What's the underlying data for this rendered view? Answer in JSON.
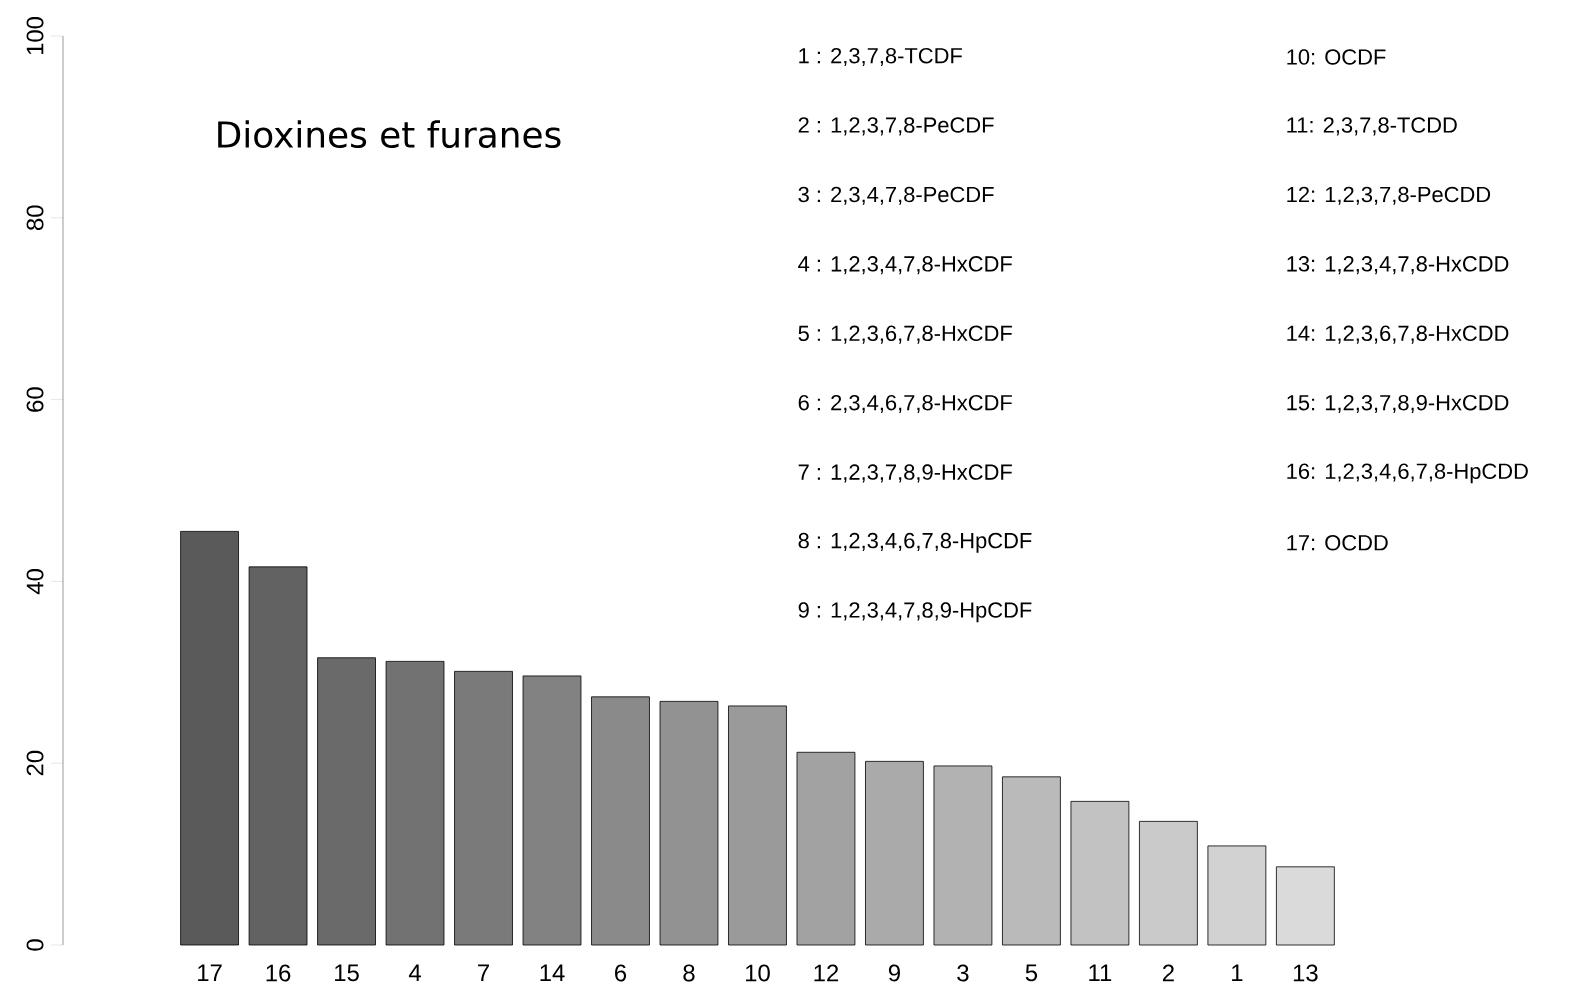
{
  "chart_data": {
    "type": "bar",
    "title": "Dioxines et furanes",
    "categories": [
      "17",
      "16",
      "15",
      "4",
      "7",
      "14",
      "6",
      "8",
      "10",
      "12",
      "9",
      "3",
      "5",
      "11",
      "2",
      "1",
      "13"
    ],
    "values": [
      45.5,
      41.6,
      31.6,
      31.2,
      30.1,
      29.6,
      27.3,
      26.8,
      26.3,
      21.2,
      20.2,
      19.7,
      18.5,
      15.8,
      13.6,
      10.9,
      8.6
    ],
    "colors": [
      "#5a5a5a",
      "#626262",
      "#6a6a6a",
      "#727272",
      "#7a7a7a",
      "#828282",
      "#8a8a8a",
      "#929292",
      "#9a9a9a",
      "#a2a2a2",
      "#aaaaaa",
      "#b2b2b2",
      "#bababa",
      "#c2c2c2",
      "#cacaca",
      "#d2d2d2",
      "#dadada"
    ],
    "ylim": [
      0,
      100
    ],
    "yticks": [
      0,
      20,
      40,
      60,
      80,
      100
    ],
    "annotations": [
      "1 : 2,3,7,8-TCDF",
      "2 : 1,2,3,7,8-PeCDF",
      "3 : 2,3,4,7,8-PeCDF",
      "4 : 1,2,3,4,7,8-HxCDF",
      "5 : 1,2,3,6,7,8-HxCDF",
      "6 : 2,3,4,6,7,8-HxCDF",
      "7 : 1,2,3,7,8,9-HxCDF",
      "8 : 1,2,3,4,6,7,8-HpCDF",
      "9 : 1,2,3,4,7,8,9-HpCDF",
      "10: OCDF",
      "11: 2,3,7,8-TCDD",
      "12: 1,2,3,7,8-PeCDD",
      "13: 1,2,3,4,7,8-HxCDD",
      "14: 1,2,3,6,7,8-HxCDD",
      "15: 1,2,3,7,8,9-HxCDD",
      "16: 1,2,3,4,6,7,8-HpCDD",
      "17: OCDD"
    ]
  }
}
